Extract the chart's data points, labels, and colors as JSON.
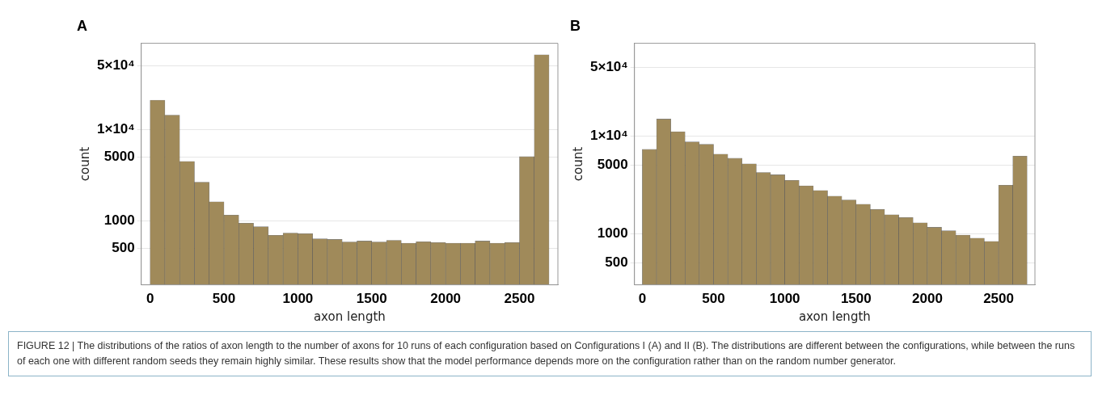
{
  "chart_data": [
    {
      "type": "histogram",
      "title": "A",
      "xlabel": "axon length",
      "ylabel": "count",
      "bins": [
        0,
        100,
        200,
        300,
        400,
        500,
        600,
        700,
        800,
        900,
        1000,
        1100,
        1200,
        1300,
        1400,
        1500,
        1600,
        1700,
        1800,
        1900,
        2000,
        2100,
        2200,
        2300,
        2400,
        2500,
        2600,
        2700
      ],
      "color": "#a08a5a",
      "values": [
        21000,
        14400,
        4490,
        2660,
        1620,
        1160,
        946,
        865,
        697,
        738,
        726,
        638,
        628,
        589,
        603,
        589,
        613,
        571,
        593,
        580,
        571,
        571,
        603,
        571,
        580,
        5060,
        65900
      ],
      "log": "y",
      "xlim": [
        -60,
        2760
      ],
      "ylim": [
        200,
        88000
      ],
      "xticks": [
        0,
        500,
        1000,
        1500,
        2000,
        2500
      ],
      "yticks": [
        {
          "value": 500,
          "label": "500"
        },
        {
          "value": 1000,
          "label": "1000"
        },
        {
          "value": 5000,
          "label": "5000"
        },
        {
          "value": 10000,
          "label": "1×10⁴"
        },
        {
          "value": 50000,
          "label": "5×10⁴"
        }
      ],
      "grid": "y",
      "legend": false
    },
    {
      "type": "histogram",
      "title": "B",
      "xlabel": "axon length",
      "ylabel": "count",
      "bins": [
        0,
        100,
        200,
        300,
        400,
        500,
        600,
        700,
        800,
        900,
        1000,
        1100,
        1200,
        1300,
        1400,
        1500,
        1600,
        1700,
        1800,
        1900,
        2000,
        2100,
        2200,
        2300,
        2400,
        2500,
        2600,
        2700
      ],
      "color": "#a08a5a",
      "values": [
        7260,
        14800,
        11000,
        8650,
        8170,
        6500,
        5890,
        5170,
        4220,
        3990,
        3500,
        3080,
        2760,
        2420,
        2210,
        2000,
        1770,
        1560,
        1460,
        1290,
        1160,
        1070,
        966,
        900,
        835,
        3120,
        6200
      ],
      "log": "y",
      "xlim": [
        -55,
        2755
      ],
      "ylim": [
        300,
        88000
      ],
      "xticks": [
        0,
        500,
        1000,
        1500,
        2000,
        2500
      ],
      "yticks": [
        {
          "value": 500,
          "label": "500"
        },
        {
          "value": 1000,
          "label": "1000"
        },
        {
          "value": 5000,
          "label": "5000"
        },
        {
          "value": 10000,
          "label": "1×10⁴"
        },
        {
          "value": 50000,
          "label": "5×10⁴"
        }
      ],
      "grid": "y",
      "legend": false,
      "annotations": [
        "FIGURE 12 | The distributions of the ratios of axon length to the number of axons for 10 runs of each configuration based on Configurations I (A) and II (B). The distributions are different between the configurations, while between the runs of each one with different random seeds they remain highly similar. These results show that the model performance depends more on the configuration rather than on the random number generator."
      ]
    }
  ]
}
